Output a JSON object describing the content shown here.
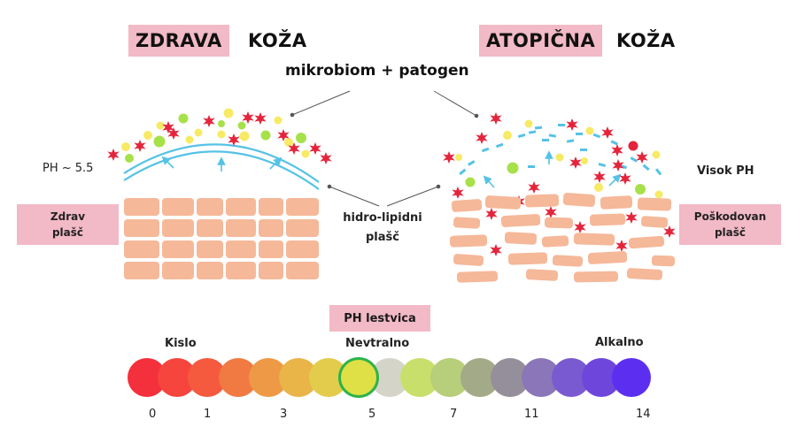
{
  "healthy": {
    "title_highlight": "ZDRAVA",
    "title_word": "KOŽA",
    "side_label_line1": "Zdrav",
    "side_label_line2": "plašč",
    "ph_note": "PH ~ 5.5"
  },
  "atopic": {
    "title_highlight": "ATOPIČNA",
    "title_word": "KOŽA",
    "side_label_line1": "Poškodovan",
    "side_label_line2": "plašč",
    "ph_note": "Visok PH"
  },
  "center": {
    "microbiome_label": "mikrobiom + patogen",
    "lipid_label_line1": "hidro-lipidni",
    "lipid_label_line2": "plašč"
  },
  "ph_scale": {
    "title": "PH lestvica",
    "zones": {
      "acidic": "Kislo",
      "neutral": "Nevtralno",
      "alkaline": "Alkalno"
    },
    "ticks": [
      "0",
      "1",
      "3",
      "5",
      "7",
      "11",
      "14"
    ],
    "highlighted_index": 7,
    "circle_colors": [
      "#f4303c",
      "#f6453d",
      "#f55a3f",
      "#f07a42",
      "#ee9945",
      "#e9b448",
      "#e3cc4c",
      "#dfe046",
      "#d4d5c8",
      "#c8df6c",
      "#b7ce7a",
      "#a3aa88",
      "#958f9b",
      "#8a76b8",
      "#7a5ad0",
      "#6e46db",
      "#5c2ff0"
    ]
  },
  "colors": {
    "pink_label": "#f2b9c6",
    "cell": "#f5b899",
    "pathogen": "#e4243b",
    "microbe_green": "#a7e14a",
    "microbe_yellow": "#f7ea64",
    "lipid_blue": "#55c2e6",
    "neutral_ring": "#2db34a"
  }
}
